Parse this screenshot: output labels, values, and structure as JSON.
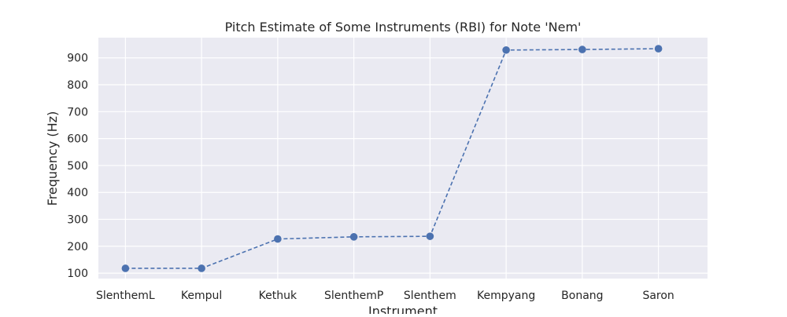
{
  "chart_data": {
    "type": "line",
    "title": "Pitch Estimate of Some Instruments (RBI) for Note 'Nem'",
    "xlabel": "Instrument",
    "ylabel": "Frequency (Hz)",
    "categories": [
      "SlenthemL",
      "Kempul",
      "Kethuk",
      "SlenthemP",
      "Slenthem",
      "Kempyang",
      "Bonang",
      "Saron"
    ],
    "series": [
      {
        "values": [
          118,
          118,
          227,
          235,
          237,
          929,
          931,
          934
        ]
      }
    ],
    "ylim": [
      80,
      975
    ],
    "yticks": [
      100,
      200,
      300,
      400,
      500,
      600,
      700,
      800,
      900
    ],
    "grid": true,
    "line_style": "dashed",
    "marker": "circle",
    "colors": {
      "series": "#4c72b0",
      "plot_background": "#eaeaf2",
      "grid": "#ffffff"
    }
  }
}
